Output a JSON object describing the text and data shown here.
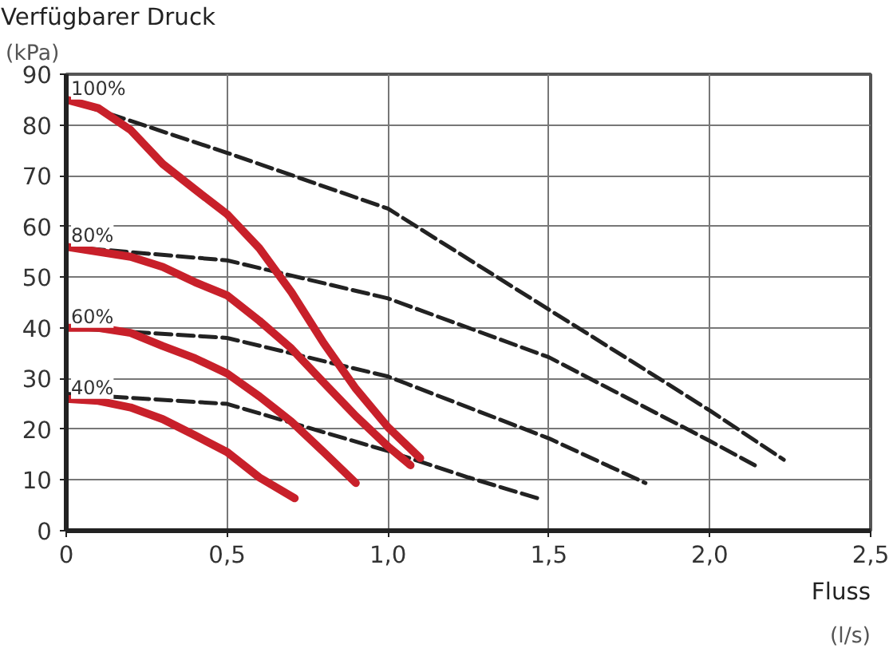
{
  "chart_data": {
    "type": "line",
    "title": "Verfügbarer Druck",
    "ylabel": "(kPa)",
    "xlabel": "Fluss\n(l/s)",
    "series": [
      {
        "color": "#c8202a",
        "line_style": "solid",
        "x": [
          0,
          0.1,
          0.2,
          0.3,
          0.4,
          0.5,
          0.6,
          0.7,
          0.8,
          0.9,
          1.0,
          1.1
        ],
        "values": [
          85,
          83.3,
          79,
          72.3,
          67.3,
          62.4,
          55.7,
          47,
          37,
          28,
          20.4,
          14.3
        ]
      },
      {
        "color": "#c8202a",
        "line_style": "solid",
        "x": [
          0,
          0.2,
          0.3,
          0.4,
          0.5,
          0.6,
          0.7,
          0.8,
          0.9,
          1.0,
          1.07
        ],
        "values": [
          56,
          54,
          52,
          49,
          46.4,
          41.4,
          35.9,
          29.2,
          22.6,
          16.6,
          12.9
        ]
      },
      {
        "color": "#c8202a",
        "line_style": "solid",
        "x": [
          0,
          0.1,
          0.2,
          0.3,
          0.4,
          0.5,
          0.6,
          0.7,
          0.8,
          0.9
        ],
        "values": [
          40,
          40,
          39,
          36.4,
          34,
          31,
          26.5,
          21.5,
          15.5,
          9.4
        ]
      },
      {
        "color": "#c8202a",
        "line_style": "solid",
        "x": [
          0,
          0.1,
          0.2,
          0.3,
          0.4,
          0.5,
          0.6,
          0.71
        ],
        "values": [
          26,
          25.6,
          24.3,
          22,
          18.8,
          15.5,
          10.5,
          6.4
        ]
      },
      {
        "color": "#222222",
        "line_style": "dashed",
        "x": [
          0,
          0.5,
          1.0,
          1.5,
          1.75,
          2.0,
          2.23
        ],
        "values": [
          85,
          74.5,
          63.5,
          43.6,
          33.7,
          23.7,
          14
        ]
      },
      {
        "color": "#222222",
        "line_style": "dashed",
        "x": [
          0,
          0.5,
          1.0,
          1.5,
          2.0,
          2.14
        ],
        "values": [
          56,
          53.3,
          45.8,
          34.2,
          17.7,
          12.9
        ]
      },
      {
        "color": "#222222",
        "line_style": "dashed",
        "x": [
          0,
          0.5,
          1.0,
          1.5,
          1.8
        ],
        "values": [
          40,
          38,
          30.4,
          18.2,
          9.4
        ]
      },
      {
        "color": "#222222",
        "line_style": "dashed",
        "x": [
          0,
          0.5,
          1.0,
          1.25,
          1.47
        ],
        "values": [
          27,
          25,
          15.7,
          10.5,
          6.3
        ]
      }
    ],
    "annotations": [
      "100%",
      "80%",
      "60%",
      "40%"
    ],
    "xlim": [
      0,
      2.5
    ],
    "ylim": [
      0,
      90
    ],
    "xticks": [
      0,
      {
        "value": 0.5,
        "label": "0,5"
      },
      {
        "value": 1.0,
        "label": "1,0"
      },
      {
        "value": 1.5,
        "label": "1,5"
      },
      {
        "value": 2.0,
        "label": "2,0"
      },
      {
        "value": 2.5,
        "label": "2,5"
      }
    ],
    "yticks": [
      0,
      10,
      20,
      30,
      40,
      50,
      60,
      70,
      80,
      90
    ],
    "grid": true
  }
}
